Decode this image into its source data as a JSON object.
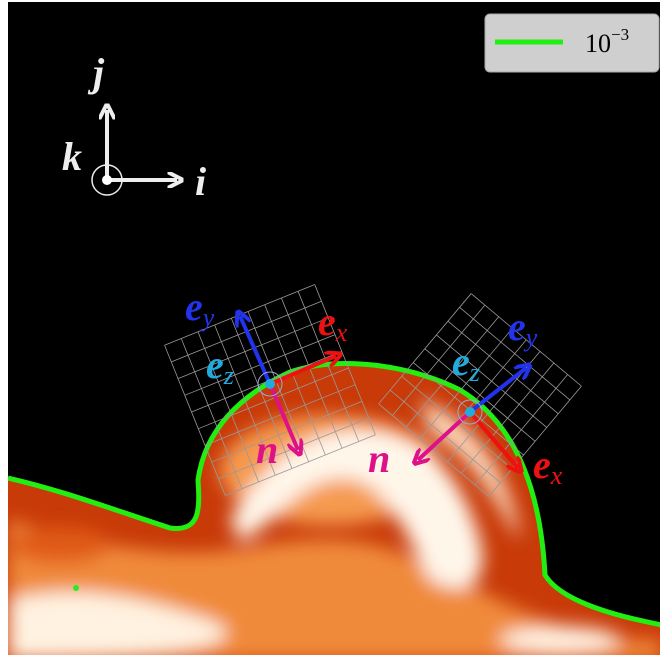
{
  "axes": {
    "j": "j",
    "k": "k",
    "i": "i"
  },
  "legend": {
    "base": "10",
    "exponent": "−3"
  },
  "frame_left": {
    "ey": {
      "letter": "e",
      "sub": "y"
    },
    "ex": {
      "letter": "e",
      "sub": "x"
    },
    "ez": {
      "letter": "e",
      "sub": "z"
    },
    "n": "n"
  },
  "frame_right": {
    "ey": {
      "letter": "e",
      "sub": "y"
    },
    "ex": {
      "letter": "e",
      "sub": "x"
    },
    "ez": {
      "letter": "e",
      "sub": "z"
    },
    "n": "n"
  }
}
